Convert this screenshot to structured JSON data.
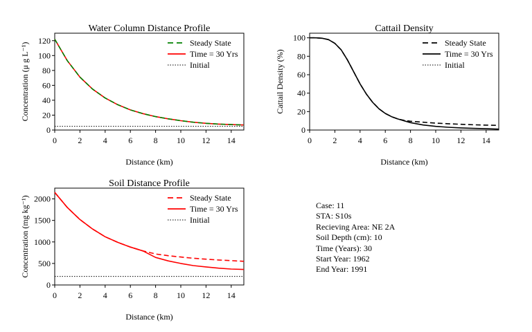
{
  "chart_data": [
    {
      "type": "line",
      "title": "Water Column Distance Profile",
      "xlabel": "Distance (km)",
      "ylabel": "Concentration (μ g L⁻¹)",
      "xlim": [
        0,
        15
      ],
      "ylim": [
        0,
        130
      ],
      "xticks": [
        0,
        2,
        4,
        6,
        8,
        10,
        12,
        14
      ],
      "yticks": [
        0,
        20,
        40,
        60,
        80,
        100,
        120
      ],
      "legend_position": "top-right",
      "grid": false,
      "series": [
        {
          "name": "Steady State",
          "style": "dashed",
          "color": "#008000",
          "x": [
            0,
            1,
            2,
            3,
            4,
            5,
            6,
            7,
            8,
            9,
            10,
            11,
            12,
            13,
            14,
            15
          ],
          "y": [
            122,
            93,
            71,
            55,
            43,
            34,
            27,
            22,
            18,
            15,
            12.5,
            10.5,
            9,
            8,
            7.3,
            6.8
          ]
        },
        {
          "name": "Time = 30 Yrs",
          "style": "solid",
          "color": "#ff0000",
          "x": [
            0,
            1,
            2,
            3,
            4,
            5,
            6,
            7,
            8,
            9,
            10,
            11,
            12,
            13,
            14,
            15
          ],
          "y": [
            122,
            93,
            71,
            55,
            43,
            34,
            27,
            22,
            18,
            15,
            12.5,
            10.5,
            9,
            8,
            7.3,
            6.8
          ]
        },
        {
          "name": "Initial",
          "style": "dotted",
          "color": "#000000",
          "x": [
            0,
            15
          ],
          "y": [
            5,
            5
          ]
        }
      ]
    },
    {
      "type": "line",
      "title": "Cattail Density",
      "xlabel": "Distance (km)",
      "ylabel": "Cattail Density (%)",
      "xlim": [
        0,
        15
      ],
      "ylim": [
        0,
        105
      ],
      "xticks": [
        0,
        2,
        4,
        6,
        8,
        10,
        12,
        14
      ],
      "yticks": [
        0,
        20,
        40,
        60,
        80,
        100
      ],
      "legend_position": "top-right",
      "grid": false,
      "series": [
        {
          "name": "Steady State",
          "style": "dashed",
          "color": "#000000",
          "x": [
            0,
            0.5,
            1,
            1.5,
            2,
            2.5,
            3,
            3.5,
            4,
            4.5,
            5,
            5.5,
            6,
            6.5,
            7,
            7.5,
            8,
            9,
            10,
            11,
            12,
            13,
            14,
            15
          ],
          "y": [
            100,
            100,
            99.5,
            98,
            94,
            87,
            76,
            63,
            50,
            39,
            30,
            23,
            18,
            14.5,
            12,
            10.5,
            9.5,
            8.5,
            7.5,
            6.8,
            6.2,
            5.7,
            5.3,
            5
          ]
        },
        {
          "name": "Time = 30 Yrs",
          "style": "solid",
          "color": "#000000",
          "x": [
            0,
            0.5,
            1,
            1.5,
            2,
            2.5,
            3,
            3.5,
            4,
            4.5,
            5,
            5.5,
            6,
            6.5,
            7,
            7.5,
            8,
            9,
            10,
            11,
            12,
            13,
            14,
            15
          ],
          "y": [
            100,
            100,
            99.5,
            98,
            94,
            87,
            76,
            63,
            50,
            39,
            30,
            23,
            18,
            14.5,
            12,
            10,
            8,
            5.5,
            4,
            3,
            2.3,
            1.8,
            1.4,
            1
          ]
        },
        {
          "name": "Initial",
          "style": "dotted",
          "color": "#000000",
          "x": [
            0,
            15
          ],
          "y": [
            0,
            0
          ]
        }
      ]
    },
    {
      "type": "line",
      "title": "Soil Distance Profile",
      "xlabel": "Distance (km)",
      "ylabel": "Concentration (mg kg⁻¹)",
      "xlim": [
        0,
        15
      ],
      "ylim": [
        0,
        2250
      ],
      "xticks": [
        0,
        2,
        4,
        6,
        8,
        10,
        12,
        14
      ],
      "yticks": [
        0,
        500,
        1000,
        1500,
        2000
      ],
      "legend_position": "top-right",
      "grid": false,
      "series": [
        {
          "name": "Steady State",
          "style": "dashed",
          "color": "#ff0000",
          "x": [
            0,
            1,
            2,
            3,
            4,
            5,
            6,
            7,
            8,
            9,
            10,
            11,
            12,
            13,
            14,
            15
          ],
          "y": [
            2150,
            1800,
            1520,
            1300,
            1120,
            990,
            880,
            790,
            720,
            680,
            650,
            620,
            600,
            580,
            565,
            550
          ]
        },
        {
          "name": "Time = 30 Yrs",
          "style": "solid",
          "color": "#ff0000",
          "x": [
            0,
            1,
            2,
            3,
            4,
            5,
            6,
            7,
            8,
            9,
            10,
            11,
            12,
            13,
            14,
            15
          ],
          "y": [
            2150,
            1800,
            1520,
            1300,
            1120,
            990,
            880,
            790,
            640,
            560,
            500,
            450,
            420,
            390,
            370,
            360
          ]
        },
        {
          "name": "Initial",
          "style": "dotted",
          "color": "#000000",
          "x": [
            0,
            15
          ],
          "y": [
            200,
            200
          ]
        }
      ]
    }
  ],
  "info": {
    "case": "Case: 11",
    "sta": "STA: S10s",
    "area": "Recieving Area: NE 2A",
    "depth": "Soil Depth (cm): 10",
    "time": "Time (Years): 30",
    "start": "Start Year: 1962",
    "end": "End Year: 1991"
  }
}
